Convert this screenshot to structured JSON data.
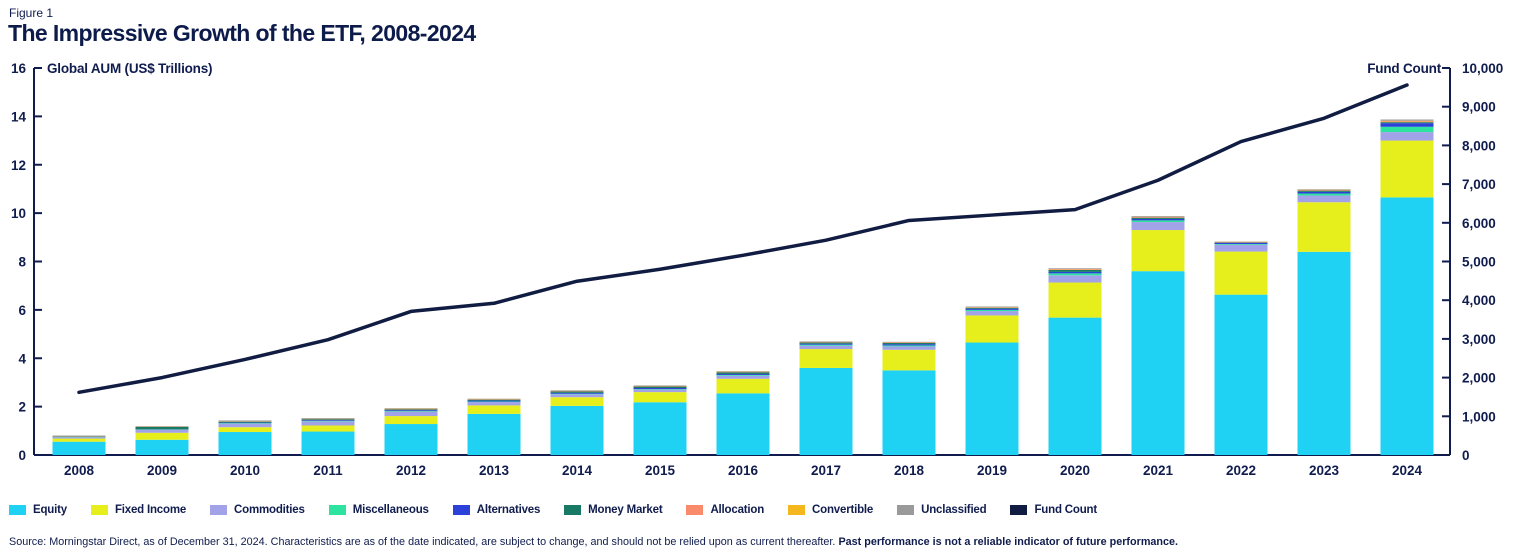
{
  "figure_label": "Figure 1",
  "title": "The Impressive Growth of the ETF, 2008-2024",
  "left_axis_title": "Global AUM (US$ Trillions)",
  "right_axis_title": "Fund Count",
  "source_text": "Source: Morningstar Direct, as of December 31, 2024. Characteristics are as of the date indicated, are subject to change, and should not be relied upon as current thereafter. ",
  "source_bold": "Past performance is not a reliable indicator of future performance.",
  "colors": {
    "text_navy": "#101c4e",
    "axis_navy": "#101c4e",
    "fund_count_line": "#101c42"
  },
  "chart_data": {
    "type": "bar",
    "stacked": true,
    "grid": false,
    "legend_position": "bottom",
    "categories": [
      "2008",
      "2009",
      "2010",
      "2011",
      "2012",
      "2013",
      "2014",
      "2015",
      "2016",
      "2017",
      "2018",
      "2019",
      "2020",
      "2021",
      "2022",
      "2023",
      "2024"
    ],
    "left_axis": {
      "label": "Global AUM (US$ Trillions)",
      "range": [
        0,
        16
      ],
      "tick_step": 2,
      "tick_labels": [
        "0",
        "2",
        "4",
        "6",
        "8",
        "10",
        "12",
        "14",
        "16"
      ]
    },
    "right_axis": {
      "label": "Fund Count",
      "range": [
        0,
        10000
      ],
      "tick_step": 1000,
      "tick_labels": [
        "0",
        "1,000",
        "2,000",
        "3,000",
        "4,000",
        "5,000",
        "6,000",
        "7,000",
        "8,000",
        "9,000",
        "10,000"
      ]
    },
    "series": [
      {
        "name": "Equity",
        "color": "#1fd2f4",
        "values": [
          0.55,
          0.63,
          0.95,
          0.97,
          1.28,
          1.7,
          2.03,
          2.18,
          2.55,
          3.6,
          3.5,
          4.65,
          5.68,
          7.6,
          6.63,
          8.4,
          10.65
        ]
      },
      {
        "name": "Fixed Income",
        "color": "#e6ef1c",
        "values": [
          0.13,
          0.29,
          0.2,
          0.25,
          0.33,
          0.35,
          0.36,
          0.42,
          0.6,
          0.78,
          0.85,
          1.12,
          1.45,
          1.7,
          1.78,
          2.05,
          2.35
        ]
      },
      {
        "name": "Commodities",
        "color": "#a2a2e8",
        "values": [
          0.05,
          0.12,
          0.15,
          0.17,
          0.19,
          0.14,
          0.12,
          0.11,
          0.13,
          0.14,
          0.14,
          0.18,
          0.3,
          0.33,
          0.28,
          0.28,
          0.35
        ]
      },
      {
        "name": "Miscellaneous",
        "color": "#2ee2a0",
        "values": [
          0.01,
          0.01,
          0.02,
          0.02,
          0.02,
          0.02,
          0.02,
          0.02,
          0.03,
          0.04,
          0.04,
          0.05,
          0.08,
          0.07,
          0.03,
          0.08,
          0.22
        ]
      },
      {
        "name": "Alternatives",
        "color": "#2b41d8",
        "values": [
          0.01,
          0.01,
          0.02,
          0.03,
          0.03,
          0.04,
          0.04,
          0.04,
          0.04,
          0.04,
          0.05,
          0.05,
          0.06,
          0.06,
          0.05,
          0.07,
          0.15
        ]
      },
      {
        "name": "Money Market",
        "color": "#187a64",
        "values": [
          0.02,
          0.1,
          0.04,
          0.04,
          0.04,
          0.04,
          0.06,
          0.06,
          0.07,
          0.05,
          0.05,
          0.04,
          0.08,
          0.05,
          0.02,
          0.05,
          0.04
        ]
      },
      {
        "name": "Allocation",
        "color": "#f98a6b",
        "values": [
          0.01,
          0.01,
          0.01,
          0.01,
          0.02,
          0.02,
          0.02,
          0.02,
          0.02,
          0.02,
          0.02,
          0.02,
          0.03,
          0.03,
          0.02,
          0.03,
          0.04
        ]
      },
      {
        "name": "Convertible",
        "color": "#f4b71d",
        "values": [
          0.005,
          0.005,
          0.01,
          0.01,
          0.01,
          0.01,
          0.01,
          0.01,
          0.01,
          0.01,
          0.01,
          0.01,
          0.01,
          0.01,
          0.01,
          0.01,
          0.02
        ]
      },
      {
        "name": "Unclassified",
        "color": "#9a9a9a",
        "values": [
          0.02,
          0.02,
          0.03,
          0.03,
          0.02,
          0.01,
          0.02,
          0.02,
          0.02,
          0.02,
          0.02,
          0.02,
          0.03,
          0.03,
          0.01,
          0.02,
          0.05
        ]
      }
    ],
    "line_series": {
      "name": "Fund Count",
      "color": "#101c42",
      "axis": "right",
      "values": [
        1620,
        2000,
        2470,
        2980,
        3710,
        3920,
        4490,
        4800,
        5160,
        5550,
        6060,
        6200,
        6340,
        7100,
        8100,
        8700,
        9560
      ]
    },
    "totals_aum_trillions": [
      0.81,
      1.19,
      1.43,
      1.53,
      1.94,
      2.33,
      2.68,
      2.88,
      3.47,
      4.7,
      4.68,
      6.14,
      7.72,
      9.88,
      8.83,
      10.99,
      13.87
    ]
  },
  "legend": [
    {
      "label": "Equity",
      "color": "#1fd2f4"
    },
    {
      "label": "Fixed Income",
      "color": "#e6ef1c"
    },
    {
      "label": "Commodities",
      "color": "#a2a2e8"
    },
    {
      "label": "Miscellaneous",
      "color": "#2ee2a0"
    },
    {
      "label": "Alternatives",
      "color": "#2b41d8"
    },
    {
      "label": "Money Market",
      "color": "#187a64"
    },
    {
      "label": "Allocation",
      "color": "#f98a6b"
    },
    {
      "label": "Convertible",
      "color": "#f4b71d"
    },
    {
      "label": "Unclassified",
      "color": "#9a9a9a"
    },
    {
      "label": "Fund Count",
      "color": "#101c42"
    }
  ]
}
